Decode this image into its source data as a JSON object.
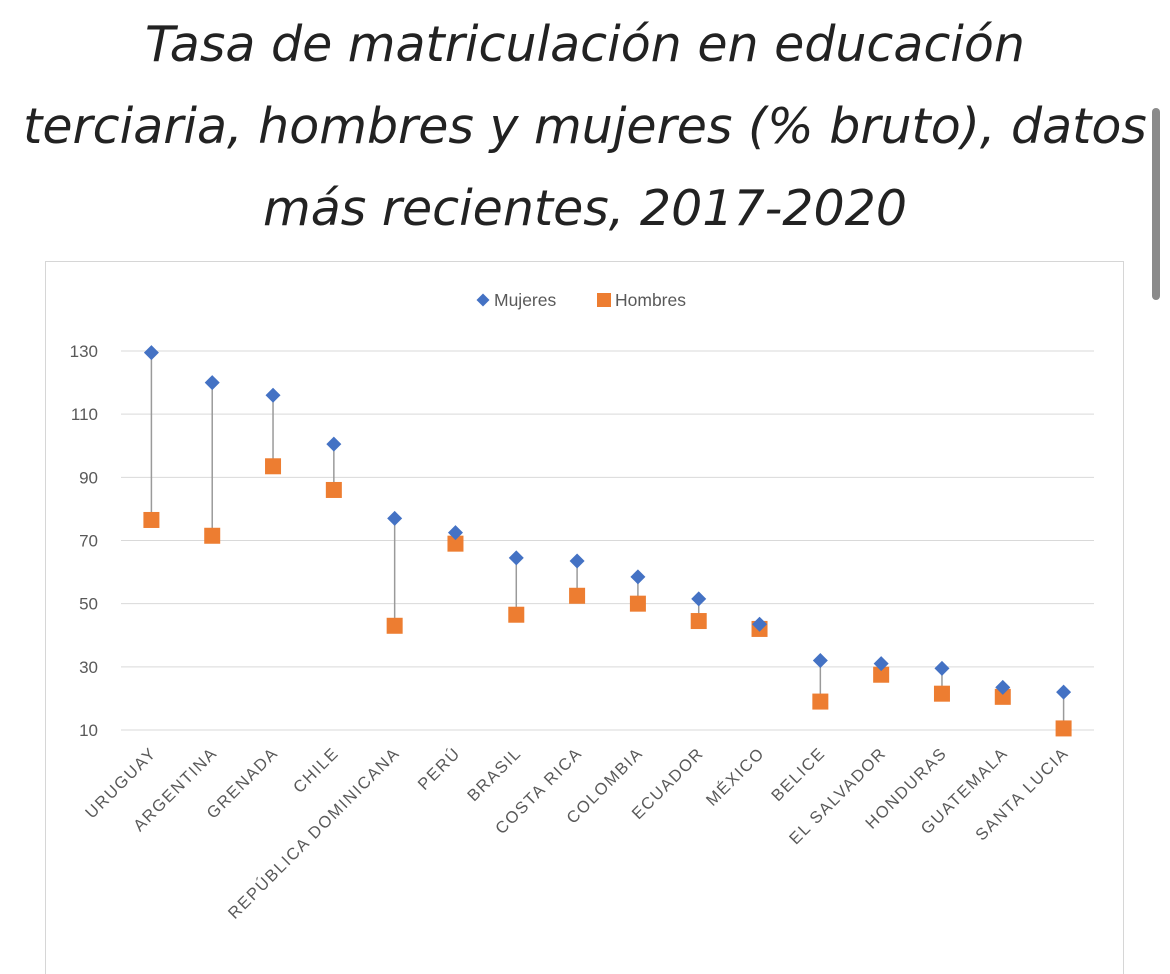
{
  "title": "Tasa de matriculación en educación terciaria, hombres y mujeres (% bruto), datos más recientes, 2017-2020",
  "title_lines": [
    "Tasa de matriculación en educación",
    "terciaria, hombres y mujeres (% bruto), datos",
    "más recientes, 2017-2020"
  ],
  "chart_data": {
    "type": "scatter",
    "categories": [
      "URUGUAY",
      "ARGENTINA",
      "GRENADA",
      "CHILE",
      "REPÚBLICA DOMINICANA",
      "PERÚ",
      "BRASIL",
      "COSTA RICA",
      "COLOMBIA",
      "ECUADOR",
      "MÉXICO",
      "BELICE",
      "EL SALVADOR",
      "HONDURAS",
      "GUATEMALA",
      "SANTA LUCIA"
    ],
    "series": [
      {
        "name": "Mujeres",
        "marker": "diamond",
        "color": "#4472C4",
        "values": [
          129.5,
          120,
          116,
          100.5,
          77,
          72.5,
          64.5,
          63.5,
          58.5,
          51.5,
          43.5,
          32,
          31,
          29.5,
          23.5,
          22
        ]
      },
      {
        "name": "Hombres",
        "marker": "square",
        "color": "#ED7D31",
        "values": [
          76.5,
          71.5,
          93.5,
          86,
          43,
          69,
          46.5,
          52.5,
          50,
          44.5,
          42,
          19,
          27.5,
          21.5,
          20.5,
          10.5
        ]
      }
    ],
    "connector_color": "#9a9a9a",
    "yticks": [
      10,
      30,
      50,
      70,
      90,
      110,
      130
    ],
    "ylim": [
      10,
      130
    ],
    "grid": true,
    "legend": "top-center",
    "xlabel": "",
    "ylabel": ""
  }
}
